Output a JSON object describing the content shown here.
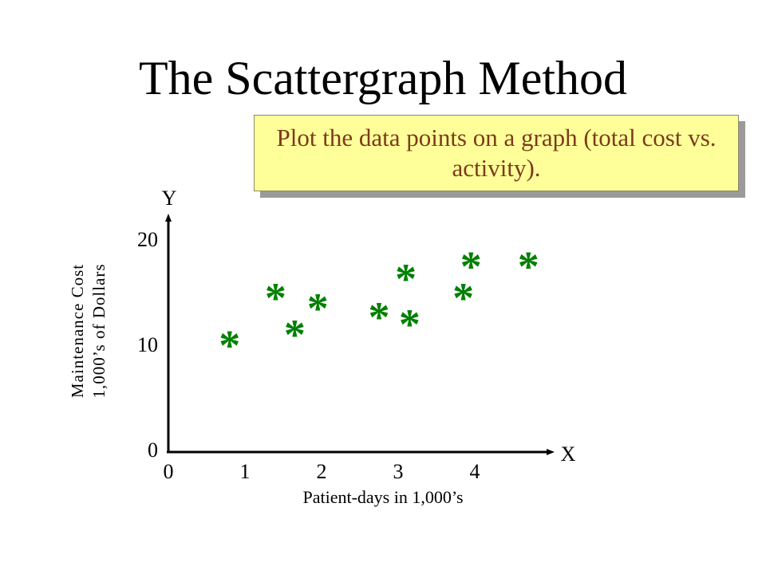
{
  "slide": {
    "title": "The Scattergraph Method",
    "callout": "Plot the data points on a graph (total cost vs. activity)."
  },
  "colors": {
    "callout_fill": "#ffff99",
    "callout_text": "#7a3b1a",
    "points": "#008000"
  },
  "chart_data": {
    "type": "scatter",
    "marker": "*",
    "xlabel": "Patient-days in 1,000’s",
    "ylabel_lines": [
      "Maintenance Cost",
      "1,000’s of Dollars"
    ],
    "x_axis_letter": "X",
    "y_axis_letter": "Y",
    "x_ticks": [
      "0",
      "1",
      "2",
      "3",
      "4"
    ],
    "y_ticks": [
      "0",
      "10",
      "20"
    ],
    "xlim": [
      0,
      4.75
    ],
    "ylim": [
      0,
      20
    ],
    "grid": false,
    "points": [
      {
        "x": 0.8,
        "y": 10.5
      },
      {
        "x": 1.4,
        "y": 15.0
      },
      {
        "x": 1.65,
        "y": 11.5
      },
      {
        "x": 1.95,
        "y": 14.0
      },
      {
        "x": 2.75,
        "y": 13.2
      },
      {
        "x": 3.1,
        "y": 16.8
      },
      {
        "x": 3.15,
        "y": 12.5
      },
      {
        "x": 3.85,
        "y": 15.0
      },
      {
        "x": 3.95,
        "y": 18.0
      },
      {
        "x": 4.7,
        "y": 18.0
      }
    ]
  }
}
